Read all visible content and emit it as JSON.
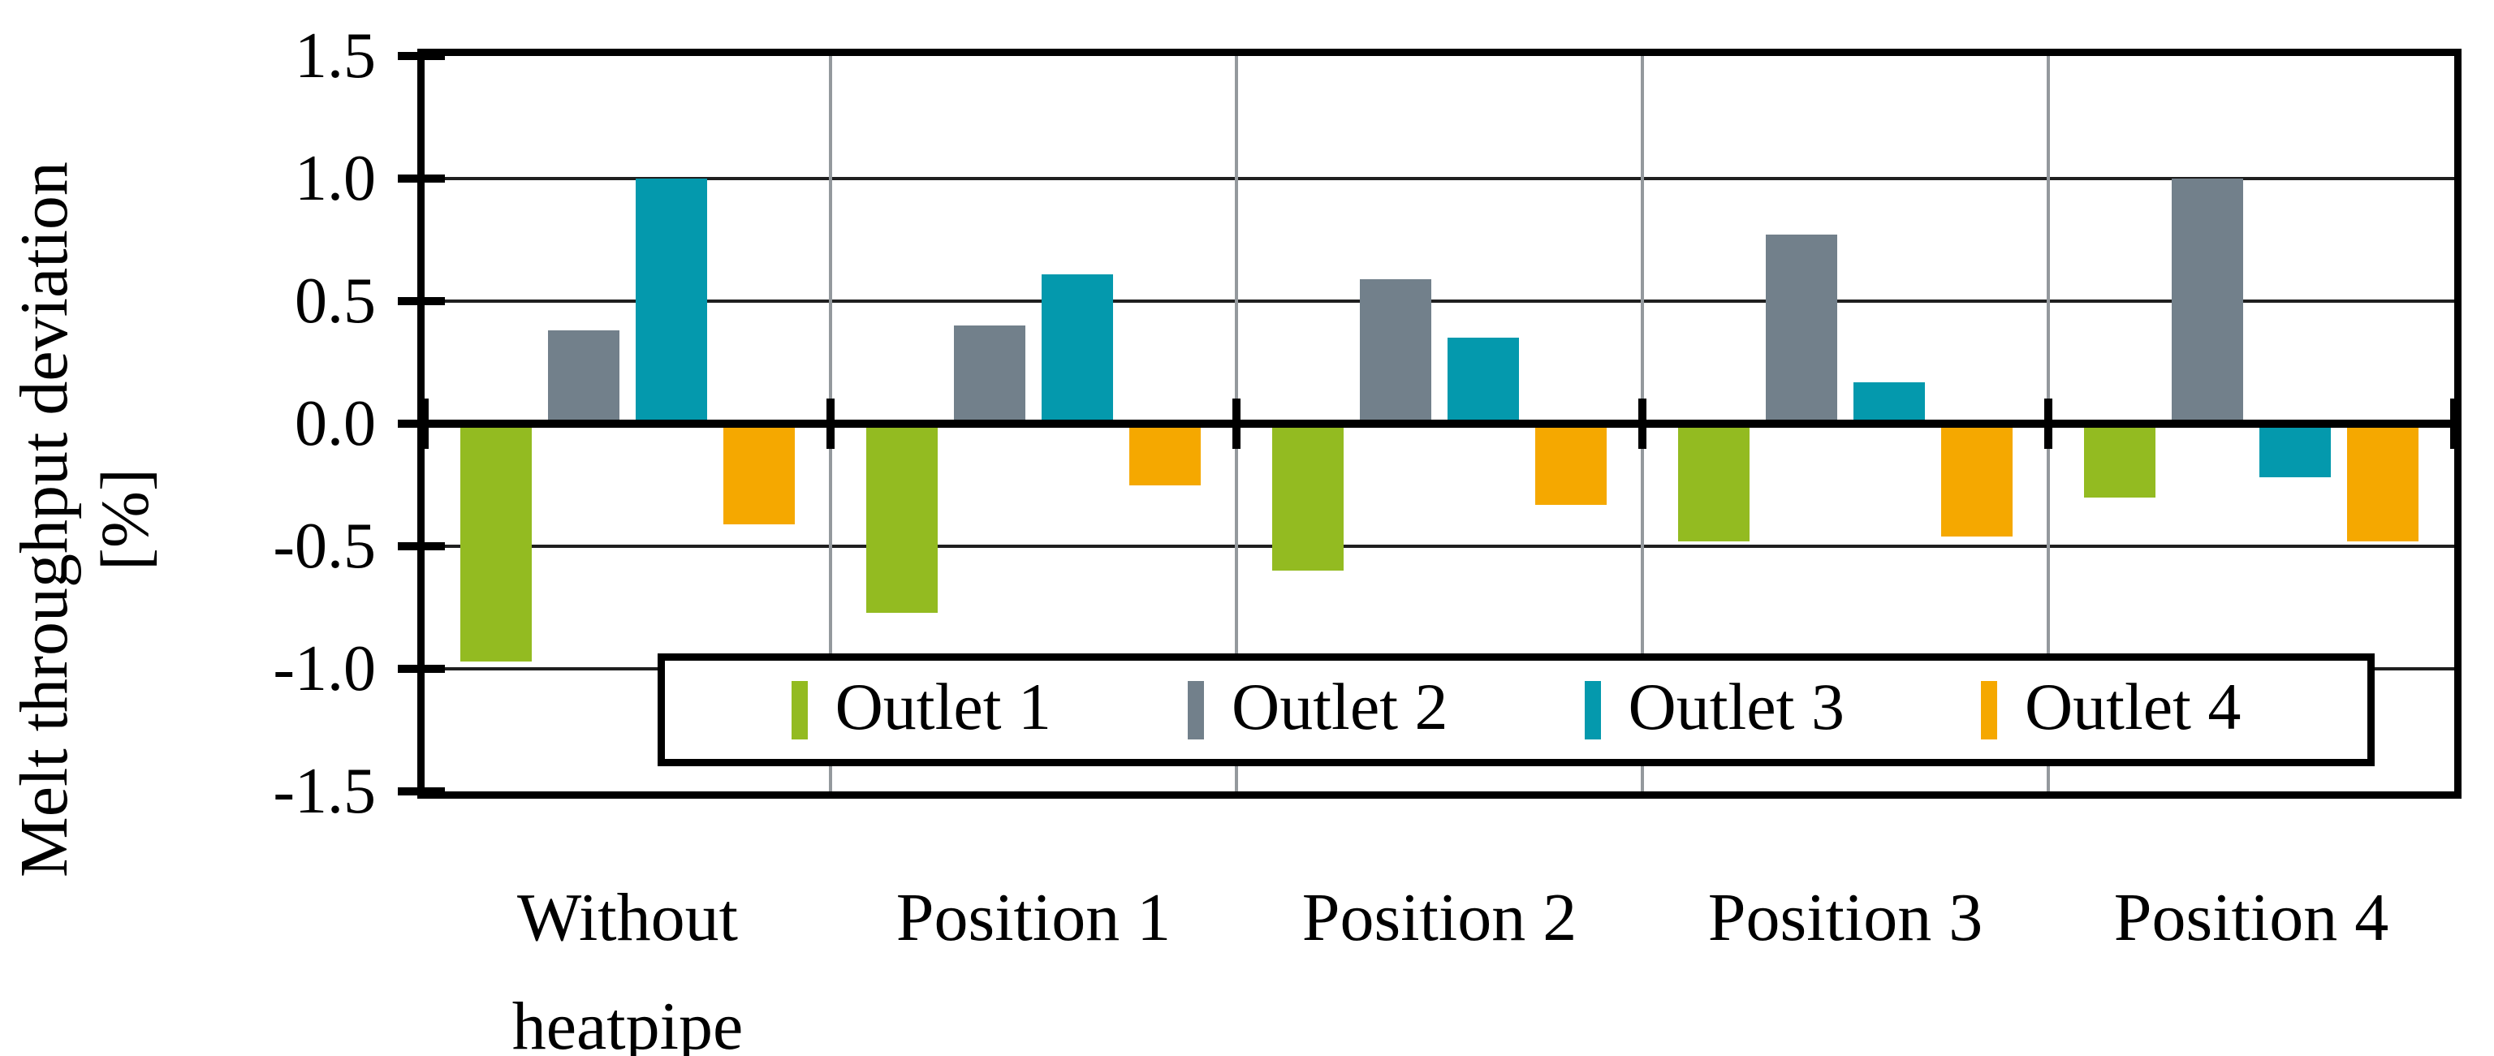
{
  "figure": {
    "y_axis": {
      "title_line1": "Melt throughput deviation",
      "title_line2": "[%]",
      "tick_labels": [
        "1.5",
        "1.0",
        "0.5",
        "0.0",
        "-0.5",
        "-1.0",
        "-1.5"
      ]
    },
    "x_axis": {
      "category_labels": [
        "Without heatpipe",
        "Position 1",
        "Position 2",
        "Position 3",
        "Position 4"
      ]
    },
    "legend": {
      "labels": [
        "Outlet 1",
        "Outlet 2",
        "Outlet 3",
        "Outlet 4"
      ]
    },
    "colors": {
      "outlet1": "#93bb21",
      "outlet2": "#72808b",
      "outlet3": "#0499ad",
      "outlet4": "#f5a800",
      "horizontal_grid": "#1f1f1f",
      "vertical_grid": "#94999d",
      "axis": "#000000",
      "background": "#ffffff"
    }
  },
  "chart_data": {
    "type": "bar",
    "title": "",
    "xlabel": "",
    "ylabel": "Melt throughput deviation [%]",
    "ylim": [
      -1.5,
      1.5
    ],
    "ytick_step": 0.5,
    "grid": true,
    "legend_position": "inside-bottom",
    "categories": [
      "Without heatpipe",
      "Position 1",
      "Position 2",
      "Position 3",
      "Position 4"
    ],
    "series": [
      {
        "name": "Outlet 1",
        "color": "#93bb21",
        "values": [
          -0.97,
          -0.77,
          -0.6,
          -0.48,
          -0.3
        ]
      },
      {
        "name": "Outlet 2",
        "color": "#72808b",
        "values": [
          0.38,
          0.4,
          0.59,
          0.77,
          1.0
        ]
      },
      {
        "name": "Outlet 3",
        "color": "#0499ad",
        "values": [
          1.0,
          0.61,
          0.35,
          0.17,
          -0.22
        ]
      },
      {
        "name": "Outlet 4",
        "color": "#f5a800",
        "values": [
          -0.41,
          -0.25,
          -0.33,
          -0.46,
          -0.48
        ]
      }
    ]
  }
}
